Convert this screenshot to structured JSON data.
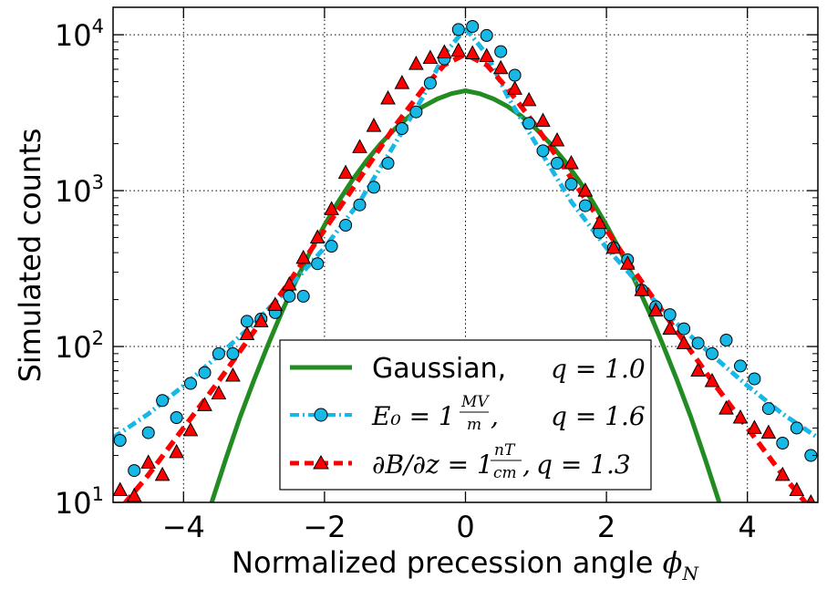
{
  "chart_data": {
    "type": "scatter",
    "title": "",
    "xlabel_text": "Normalized precession angle ",
    "xlabel_math": "ϕ",
    "xlabel_sub": "N",
    "ylabel": "Simulated counts",
    "yscale": "log",
    "xlim": [
      -5,
      5
    ],
    "ylim": [
      10,
      15000
    ],
    "grid": true,
    "legend_position": "bottom-center",
    "x_ticks": [
      -4,
      -2,
      0,
      2,
      4
    ],
    "x_tick_labels": [
      "−4",
      "−2",
      "0",
      "2",
      "4"
    ],
    "y_ticks": [
      {
        "value": 10,
        "base": "10",
        "exp": "1"
      },
      {
        "value": 100,
        "base": "10",
        "exp": "2"
      },
      {
        "value": 1000,
        "base": "10",
        "exp": "3"
      },
      {
        "value": 10000,
        "base": "10",
        "exp": "4"
      }
    ],
    "series": [
      {
        "name": "Gaussian,",
        "q_label": "q = 1.0",
        "kind": "line",
        "color": "#228b22",
        "x": [
          -3.6,
          -3.4,
          -3.2,
          -3.0,
          -2.8,
          -2.6,
          -2.4,
          -2.2,
          -2.0,
          -1.8,
          -1.6,
          -1.4,
          -1.2,
          -1.0,
          -0.8,
          -0.6,
          -0.4,
          -0.2,
          0.0,
          0.2,
          0.4,
          0.6,
          0.8,
          1.0,
          1.2,
          1.4,
          1.6,
          1.8,
          2.0,
          2.2,
          2.4,
          2.6,
          2.8,
          3.0,
          3.2,
          3.4,
          3.6
        ],
        "y": [
          10,
          19,
          35,
          61,
          103,
          169,
          267,
          407,
          600,
          855,
          1176,
          1564,
          2009,
          2494,
          2991,
          3464,
          3876,
          4189,
          4377,
          4189,
          3876,
          3464,
          2991,
          2494,
          2009,
          1564,
          1176,
          855,
          600,
          407,
          267,
          169,
          103,
          61,
          35,
          19,
          10
        ]
      },
      {
        "name": "E₀ = 1",
        "frac_num": "MV",
        "frac_den": "m",
        "q_label": "q = 1.6",
        "kind": "markers+line",
        "marker": "circle",
        "color": "#17b7e6",
        "fit_x": [
          -5.0,
          -4.5,
          -4.0,
          -3.5,
          -3.0,
          -2.5,
          -2.0,
          -1.5,
          -1.0,
          -0.6,
          -0.3,
          0.0,
          0.3,
          0.6,
          1.0,
          1.5,
          2.0,
          2.5,
          3.0,
          3.5,
          4.0,
          4.5,
          5.0
        ],
        "fit_y": [
          26,
          37,
          56,
          88,
          140,
          240,
          430,
          850,
          2000,
          4000,
          7500,
          11000,
          7500,
          4000,
          2000,
          850,
          430,
          240,
          140,
          88,
          56,
          37,
          26
        ],
        "x": [
          -4.9,
          -4.7,
          -4.5,
          -4.3,
          -4.1,
          -3.9,
          -3.7,
          -3.5,
          -3.3,
          -3.1,
          -2.9,
          -2.7,
          -2.5,
          -2.3,
          -2.1,
          -1.9,
          -1.7,
          -1.5,
          -1.3,
          -1.1,
          -0.9,
          -0.7,
          -0.5,
          -0.3,
          -0.1,
          0.1,
          0.3,
          0.5,
          0.7,
          0.9,
          1.1,
          1.3,
          1.5,
          1.7,
          1.9,
          2.1,
          2.3,
          2.5,
          2.7,
          2.9,
          3.1,
          3.3,
          3.5,
          3.7,
          3.9,
          4.1,
          4.3,
          4.5,
          4.7,
          4.9
        ],
        "y": [
          25,
          16,
          28,
          45,
          35,
          58,
          68,
          90,
          90,
          145,
          150,
          165,
          210,
          210,
          340,
          440,
          600,
          810,
          1050,
          1500,
          2500,
          3200,
          4900,
          7000,
          10800,
          11300,
          9900,
          7800,
          5500,
          2700,
          1800,
          1500,
          1100,
          800,
          540,
          430,
          360,
          230,
          180,
          160,
          130,
          105,
          90,
          110,
          75,
          62,
          40,
          24,
          30,
          20
        ]
      },
      {
        "name": "∂B/∂z = 1",
        "frac_num": "nT",
        "frac_den": "cm",
        "q_label": "q = 1.3",
        "kind": "markers+line",
        "marker": "triangle",
        "color": "#ff0000",
        "fit_x": [
          -5.0,
          -4.5,
          -4.0,
          -3.5,
          -3.0,
          -2.5,
          -2.0,
          -1.5,
          -1.0,
          -0.6,
          -0.3,
          0.0,
          0.3,
          0.6,
          1.0,
          1.5,
          2.0,
          2.5,
          3.0,
          3.5,
          4.0,
          4.5,
          5.0
        ],
        "fit_y": [
          8,
          15,
          30,
          60,
          125,
          260,
          560,
          1200,
          2600,
          4500,
          6400,
          7500,
          6400,
          4500,
          2600,
          1200,
          560,
          260,
          125,
          60,
          30,
          15,
          8
        ],
        "x": [
          -4.9,
          -4.7,
          -4.5,
          -4.3,
          -4.1,
          -3.9,
          -3.7,
          -3.5,
          -3.3,
          -3.1,
          -2.9,
          -2.7,
          -2.5,
          -2.3,
          -2.1,
          -1.9,
          -1.7,
          -1.5,
          -1.3,
          -1.1,
          -0.9,
          -0.7,
          -0.5,
          -0.3,
          -0.1,
          0.1,
          0.3,
          0.5,
          0.7,
          0.9,
          1.1,
          1.3,
          1.5,
          1.7,
          1.9,
          2.1,
          2.3,
          2.5,
          2.7,
          2.9,
          3.1,
          3.3,
          3.5,
          3.7,
          3.9,
          4.1,
          4.3,
          4.5,
          4.7,
          4.9
        ],
        "y": [
          12,
          11,
          18,
          15,
          21,
          29,
          42,
          50,
          65,
          120,
          145,
          185,
          250,
          370,
          500,
          760,
          1300,
          1900,
          2600,
          3900,
          4900,
          6500,
          7100,
          7700,
          7900,
          7600,
          7300,
          6100,
          4500,
          3800,
          2800,
          2100,
          1500,
          1000,
          620,
          430,
          340,
          230,
          170,
          130,
          105,
          70,
          60,
          40,
          35,
          30,
          28,
          15,
          12,
          10
        ]
      }
    ]
  }
}
